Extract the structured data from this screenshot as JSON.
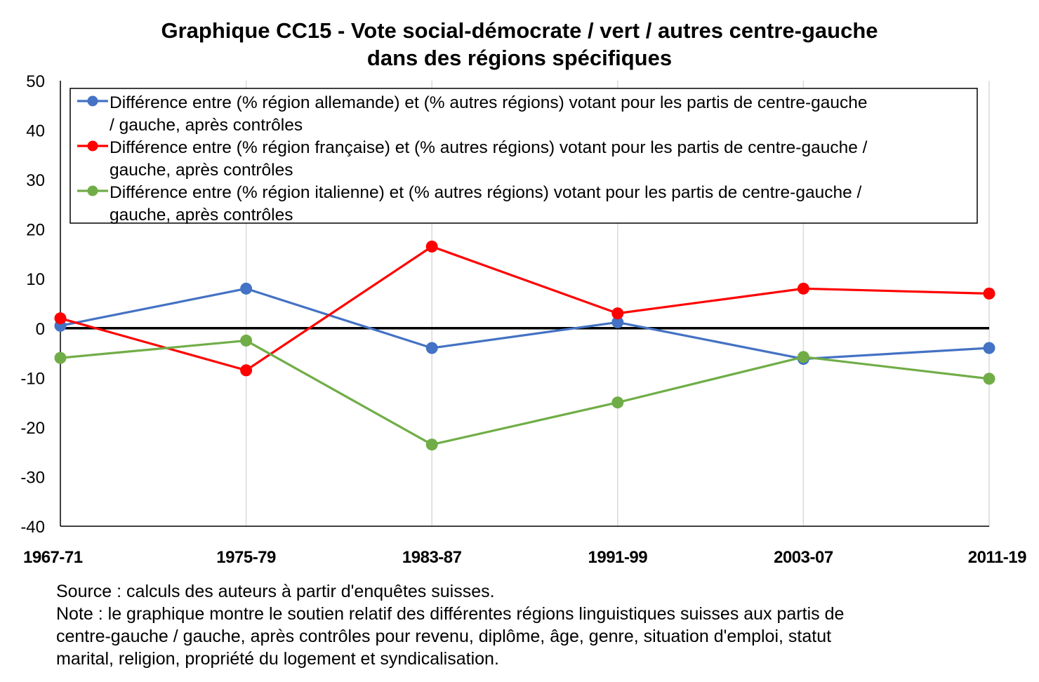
{
  "chart_data": {
    "type": "line",
    "title": [
      "Graphique CC15 - Vote social-démocrate / vert / autres centre-gauche",
      "dans des régions spécifiques"
    ],
    "categories": [
      "1967-71",
      "1975-79",
      "1983-87",
      "1991-99",
      "2003-07",
      "2011-19"
    ],
    "ylim": [
      -40,
      50
    ],
    "yticks": [
      "50",
      "40",
      "30",
      "20",
      "10",
      "0",
      "-10",
      "-20",
      "-30",
      "-40"
    ],
    "grid": "vertical",
    "legend_position": "top",
    "series": [
      {
        "name_lines": [
          "Différence entre (% région allemande) et (% autres régions) votant pour les partis de centre-gauche",
          "/ gauche, après contrôles"
        ],
        "color": "#4472C4",
        "values": [
          0.5,
          8,
          -4,
          1.2,
          -6.2,
          -4
        ]
      },
      {
        "name_lines": [
          "Différence entre (% région française) et (% autres régions) votant pour les partis de centre-gauche /",
          "gauche, après contrôles"
        ],
        "color": "#FF0000",
        "values": [
          2,
          -8.5,
          16.5,
          3,
          8,
          7
        ]
      },
      {
        "name_lines": [
          "Différence entre (% région italienne) et (% autres régions) votant pour les partis de centre-gauche /",
          "gauche, après contrôles"
        ],
        "color": "#70AD47",
        "values": [
          -6,
          -2.5,
          -23.5,
          -15,
          -5.8,
          -10.2
        ]
      }
    ]
  },
  "notes": {
    "source": "Source : calculs des auteurs à partir d'enquêtes suisses.",
    "note_lines": [
      "Note : le graphique montre le soutien relatif des différentes régions linguistiques suisses aux partis de",
      "centre-gauche / gauche, après contrôles pour revenu, diplôme, âge, genre, situation d'emploi, statut",
      "marital, religion, propriété du logement et syndicalisation."
    ]
  }
}
